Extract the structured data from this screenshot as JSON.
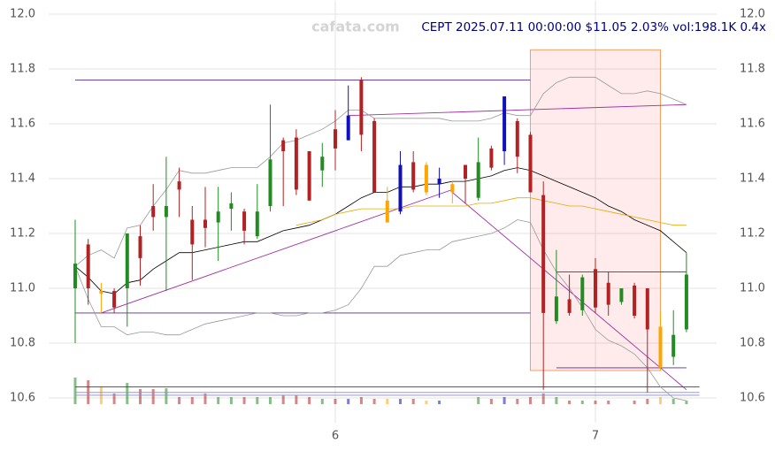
{
  "chart_data": {
    "type": "candlestick",
    "title": "CEPT 2025.07.11 00:00:00 $11.05 2.03% vol:198.1K 0.4x",
    "watermark": "cafata.com",
    "x": [
      5.0,
      5.05,
      5.1,
      5.15,
      5.2,
      5.25,
      5.3,
      5.35,
      5.4,
      5.45,
      5.5,
      5.55,
      5.6,
      5.65,
      5.7,
      5.75,
      5.8,
      5.85,
      5.9,
      5.95,
      6.0,
      6.05,
      6.1,
      6.15,
      6.2,
      6.25,
      6.3,
      6.35,
      6.4,
      6.45,
      6.5,
      6.55,
      6.6,
      6.65,
      6.7,
      6.75,
      6.8,
      6.85,
      6.9,
      6.95,
      7.0,
      7.05,
      7.1,
      7.15,
      7.2,
      7.25,
      7.3,
      7.35
    ],
    "open": [
      11.0,
      11.16,
      10.99,
      10.99,
      11.0,
      11.19,
      11.3,
      11.26,
      11.39,
      11.25,
      11.25,
      11.24,
      11.29,
      11.28,
      11.19,
      11.3,
      11.54,
      11.55,
      11.5,
      11.43,
      11.58,
      11.54,
      11.76,
      11.61,
      11.32,
      11.28,
      11.46,
      11.45,
      11.38,
      11.35,
      11.45,
      11.33,
      11.51,
      11.5,
      11.61,
      11.56,
      11.34,
      10.88,
      10.96,
      10.92,
      11.07,
      11.02,
      10.95,
      11.01,
      11.0,
      10.86,
      10.75,
      10.85
    ],
    "high": [
      11.25,
      11.18,
      11.02,
      11.0,
      11.2,
      11.23,
      11.38,
      11.48,
      11.44,
      11.3,
      11.37,
      11.37,
      11.35,
      11.29,
      11.38,
      11.67,
      11.55,
      11.58,
      11.5,
      11.53,
      11.65,
      11.74,
      11.77,
      11.62,
      11.37,
      11.5,
      11.5,
      11.46,
      11.44,
      11.39,
      11.45,
      11.55,
      11.52,
      11.7,
      11.62,
      11.57,
      11.39,
      11.14,
      11.05,
      11.05,
      11.11,
      11.06,
      11.0,
      11.02,
      11.0,
      10.91,
      10.92,
      11.13
    ],
    "low": [
      10.8,
      10.94,
      10.91,
      10.91,
      10.86,
      11.01,
      11.21,
      10.99,
      11.26,
      11.03,
      11.15,
      11.1,
      11.21,
      11.16,
      11.18,
      11.28,
      11.3,
      11.34,
      11.32,
      11.37,
      11.43,
      11.54,
      11.5,
      11.35,
      11.24,
      11.27,
      11.35,
      11.34,
      11.33,
      11.31,
      11.31,
      11.32,
      11.43,
      11.45,
      11.42,
      11.35,
      10.63,
      10.87,
      10.9,
      10.9,
      10.91,
      10.9,
      10.94,
      10.89,
      10.62,
      10.7,
      10.72,
      10.84
    ],
    "close": [
      11.09,
      11.0,
      10.98,
      10.93,
      11.2,
      11.11,
      11.26,
      11.3,
      11.36,
      11.16,
      11.22,
      11.28,
      11.31,
      11.21,
      11.28,
      11.47,
      11.5,
      11.36,
      11.32,
      11.48,
      11.51,
      11.63,
      11.56,
      11.35,
      11.24,
      11.45,
      11.36,
      11.35,
      11.4,
      11.38,
      11.4,
      11.46,
      11.44,
      11.7,
      11.48,
      11.35,
      10.91,
      10.97,
      10.91,
      11.04,
      10.93,
      10.94,
      11.0,
      10.9,
      10.85,
      10.71,
      10.83,
      11.05
    ],
    "colors": [
      "#228b22",
      "#b22222",
      "#ffa500",
      "#b22222",
      "#228b22",
      "#b22222",
      "#b22222",
      "#228b22",
      "#b22222",
      "#b22222",
      "#b22222",
      "#228b22",
      "#228b22",
      "#b22222",
      "#228b22",
      "#228b22",
      "#b22222",
      "#b22222",
      "#b22222",
      "#228b22",
      "#b22222",
      "#1010c0",
      "#b22222",
      "#b22222",
      "#ffa500",
      "#1010c0",
      "#b22222",
      "#ffa500",
      "#1010c0",
      "#ffa500",
      "#b22222",
      "#228b22",
      "#b22222",
      "#1010c0",
      "#b22222",
      "#b22222",
      "#b22222",
      "#228b22",
      "#b22222",
      "#228b22",
      "#b22222",
      "#b22222",
      "#228b22",
      "#b22222",
      "#b22222",
      "#ffa500",
      "#228b22",
      "#228b22"
    ],
    "volume": [
      1500,
      1350,
      950,
      600,
      1200,
      850,
      850,
      900,
      400,
      400,
      600,
      400,
      400,
      400,
      400,
      400,
      500,
      500,
      400,
      300,
      300,
      300,
      400,
      300,
      300,
      300,
      300,
      200,
      200,
      null,
      null,
      400,
      300,
      400,
      300,
      400,
      600,
      400,
      200,
      200,
      200,
      200,
      null,
      200,
      300,
      400,
      300,
      198.1
    ],
    "vlim": [
      0,
      1600
    ],
    "series": [
      {
        "color": "#000000",
        "values": [
          11.08,
          11.04,
          10.99,
          10.98,
          11.02,
          11.03,
          11.07,
          11.1,
          11.13,
          11.13,
          11.14,
          11.15,
          11.16,
          11.17,
          11.17,
          11.19,
          11.21,
          11.22,
          11.23,
          11.25,
          11.27,
          11.3,
          11.33,
          11.35,
          11.35,
          11.37,
          11.37,
          11.38,
          11.38,
          11.39,
          11.39,
          11.4,
          11.41,
          11.43,
          11.44,
          11.43,
          11.41,
          11.39,
          11.37,
          11.35,
          11.33,
          11.3,
          11.28,
          11.25,
          11.23,
          11.21,
          11.17,
          11.13
        ]
      },
      {
        "color": "#e8a800",
        "values": [
          null,
          null,
          null,
          null,
          null,
          null,
          null,
          null,
          null,
          null,
          null,
          null,
          null,
          null,
          null,
          null,
          null,
          11.23,
          11.24,
          11.25,
          11.27,
          11.28,
          11.29,
          11.29,
          11.29,
          11.29,
          11.3,
          11.3,
          11.3,
          11.3,
          11.3,
          11.31,
          11.31,
          11.32,
          11.33,
          11.33,
          11.32,
          11.31,
          11.3,
          11.3,
          11.29,
          11.28,
          11.27,
          11.26,
          11.25,
          11.24,
          11.23,
          11.23
        ]
      },
      {
        "color": "#999999",
        "values": [
          11.08,
          11.12,
          11.14,
          11.11,
          11.22,
          11.23,
          11.3,
          11.36,
          11.43,
          11.42,
          11.42,
          11.43,
          11.44,
          11.44,
          11.44,
          11.48,
          11.53,
          11.54,
          11.56,
          11.58,
          11.61,
          11.65,
          11.65,
          11.62,
          11.62,
          11.62,
          11.62,
          11.62,
          11.62,
          11.61,
          11.61,
          11.61,
          11.62,
          11.64,
          11.63,
          11.63,
          11.71,
          11.75,
          11.77,
          11.77,
          11.77,
          11.74,
          11.71,
          11.71,
          11.72,
          11.71,
          11.69,
          11.67
        ]
      },
      {
        "color": "#999999",
        "values": [
          11.08,
          10.96,
          10.86,
          10.86,
          10.83,
          10.84,
          10.84,
          10.83,
          10.83,
          10.85,
          10.87,
          10.88,
          10.89,
          10.9,
          10.91,
          10.91,
          10.9,
          10.9,
          10.91,
          10.91,
          10.92,
          10.94,
          11.0,
          11.08,
          11.08,
          11.12,
          11.13,
          11.14,
          11.14,
          11.17,
          11.18,
          11.19,
          11.2,
          11.22,
          11.25,
          11.24,
          11.14,
          11.06,
          11.0,
          10.93,
          10.85,
          10.81,
          10.79,
          10.76,
          10.71,
          10.64,
          10.6,
          10.59
        ]
      }
    ],
    "lines": [
      {
        "color": "#5b2a9a",
        "x": [
          5.0,
          6.75
        ],
        "y": [
          11.76,
          11.76
        ]
      },
      {
        "color": "#5b2a9a",
        "x": [
          5.0,
          6.75
        ],
        "y": [
          10.91,
          10.91
        ]
      },
      {
        "color": "#a030a0",
        "x": [
          5.1,
          6.45
        ],
        "y": [
          10.91,
          11.36
        ]
      },
      {
        "color": "#a030a0",
        "x": [
          6.05,
          7.35
        ],
        "y": [
          11.63,
          11.67
        ]
      },
      {
        "color": "#a030a0",
        "x": [
          6.45,
          7.35
        ],
        "y": [
          11.35,
          10.63
        ]
      },
      {
        "color": "#5b2a9a",
        "x": [
          6.85,
          7.35
        ],
        "y": [
          11.06,
          11.06
        ]
      },
      {
        "color": "#5b2a9a",
        "x": [
          6.85,
          7.35
        ],
        "y": [
          10.71,
          10.71
        ]
      },
      {
        "color": "#5b2a9a",
        "x": [
          5.0,
          7.4
        ],
        "y": [
          10.64,
          10.64
        ]
      },
      {
        "color": "#8888cc",
        "x": [
          5.0,
          7.4
        ],
        "y": [
          10.62,
          10.62
        ]
      },
      {
        "color": "#8888cc",
        "x": [
          5.0,
          7.4
        ],
        "y": [
          10.61,
          10.61
        ]
      }
    ],
    "highlight": {
      "color": "#ff000014",
      "x": [
        6.75,
        7.25
      ],
      "y": [
        10.7,
        11.87
      ]
    },
    "xlim": [
      4.898,
      7.466
    ],
    "ylim": [
      10.55,
      12.05
    ],
    "xticks": [
      6,
      7
    ],
    "yticks": [
      10.6,
      10.8,
      {
        "value": 11.0,
        "label": "11.0"
      },
      11.2,
      11.4,
      11.6,
      11.8,
      {
        "value": 12.0,
        "label": "12.0"
      }
    ],
    "grid": true
  }
}
